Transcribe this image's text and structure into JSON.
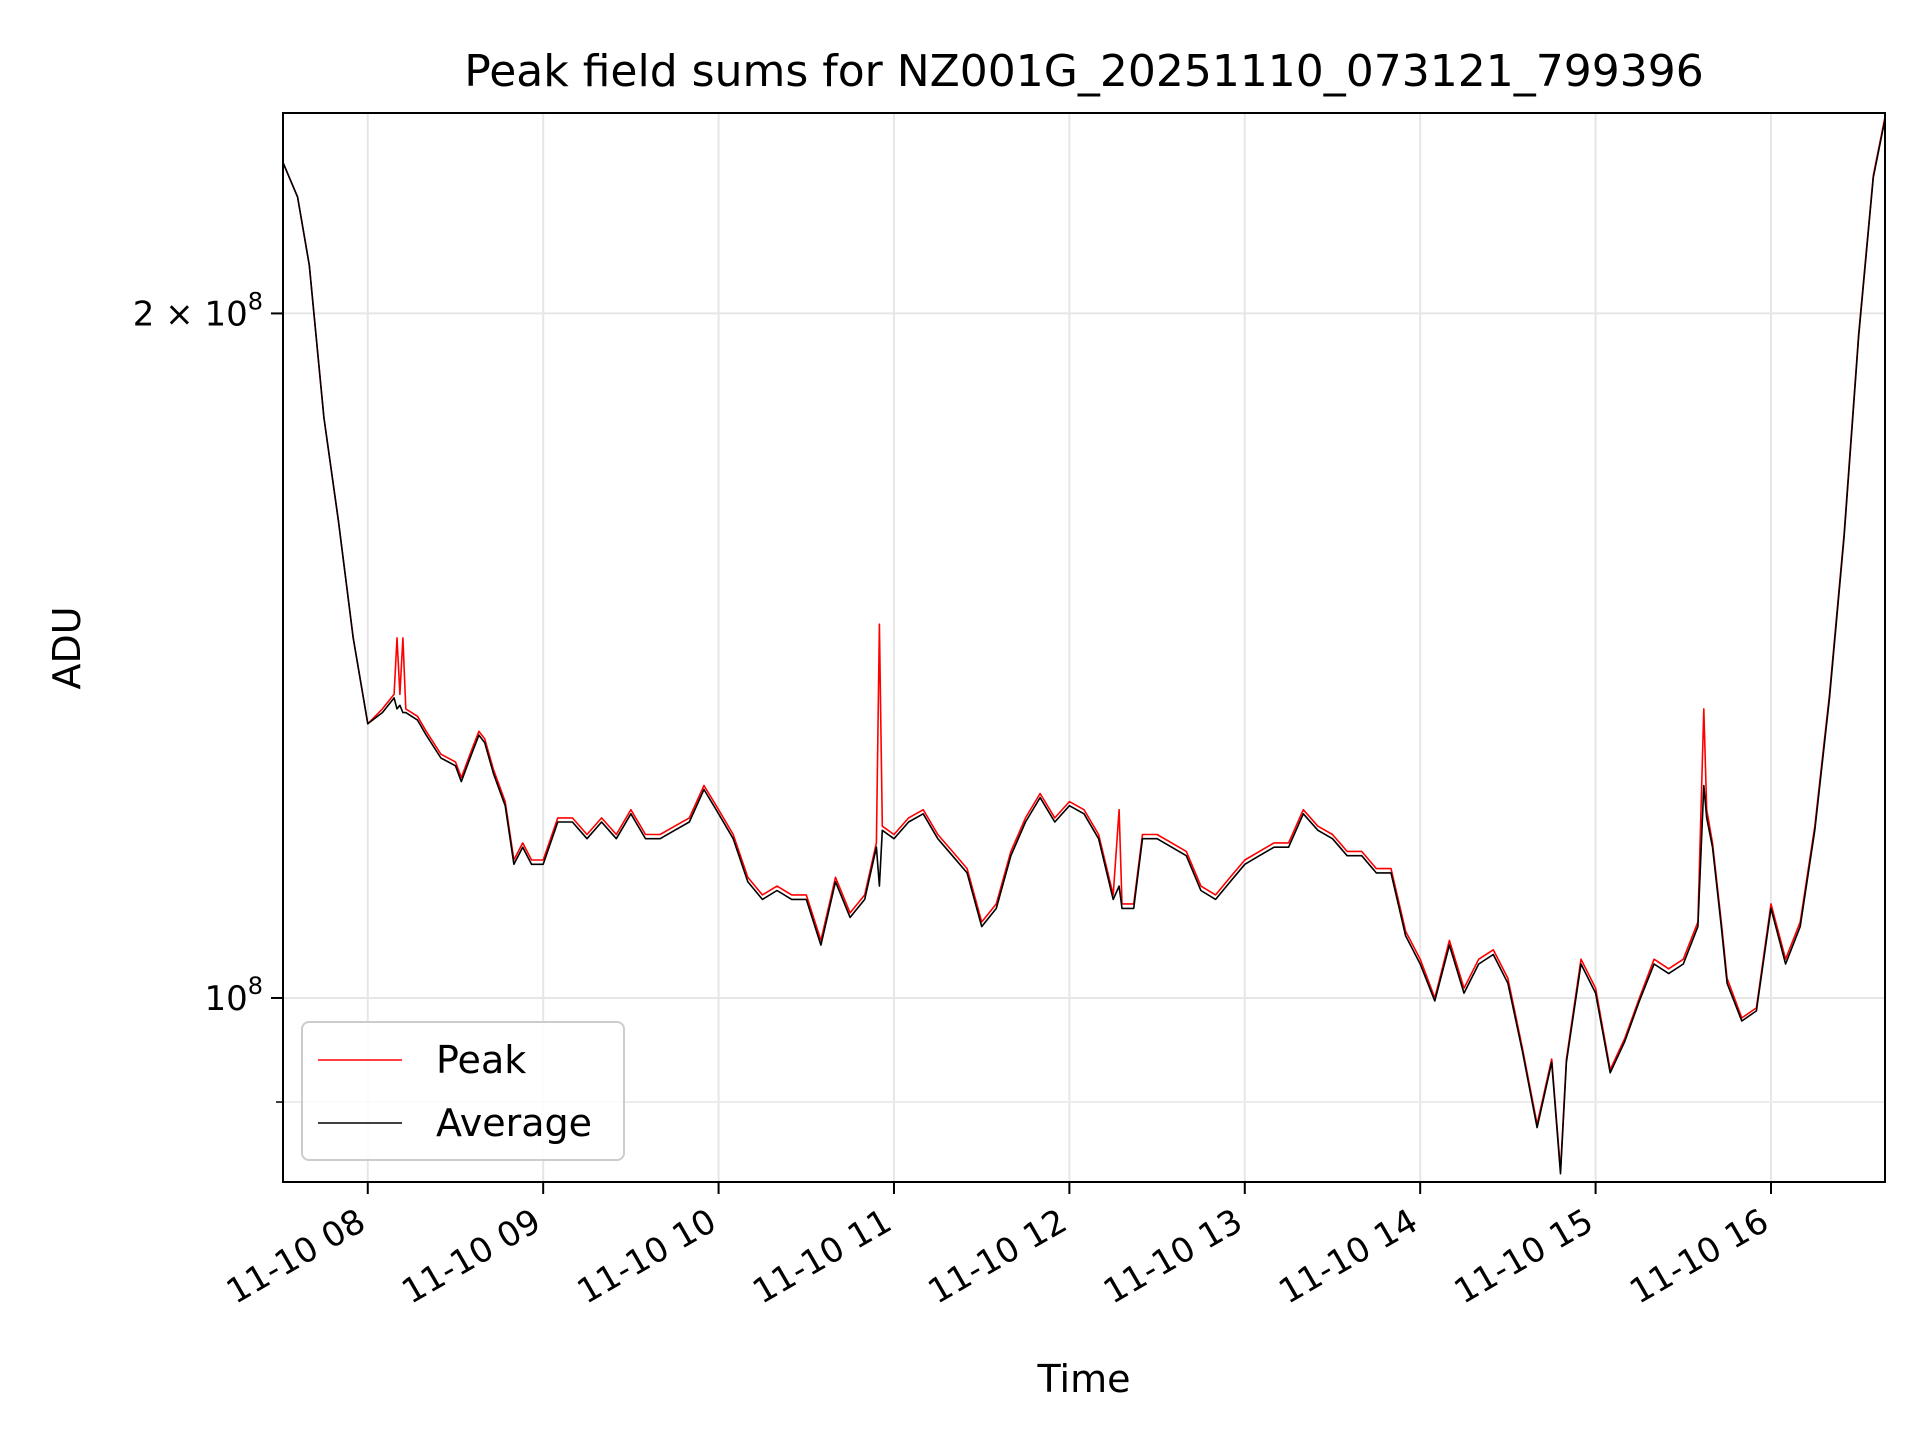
{
  "chart_data": {
    "type": "line",
    "title": "Peak field sums for NZ001G_20251110_073121_799396",
    "xlabel": "Time",
    "ylabel": "ADU",
    "y_scale": "log",
    "grid": true,
    "legend_position": "lower-left",
    "xlim": [
      "2025-11-10 07:31",
      "2025-11-10 16:39"
    ],
    "ylim": [
      83000000,
      245000000
    ],
    "x_ticks": [
      "11-10 08",
      "11-10 09",
      "11-10 10",
      "11-10 11",
      "11-10 12",
      "11-10 13",
      "11-10 14",
      "11-10 15",
      "11-10 16"
    ],
    "x_tick_times": [
      "2025-11-10 08:00",
      "2025-11-10 09:00",
      "2025-11-10 10:00",
      "2025-11-10 11:00",
      "2025-11-10 12:00",
      "2025-11-10 13:00",
      "2025-11-10 14:00",
      "2025-11-10 15:00",
      "2025-11-10 16:00"
    ],
    "y_ticks": [
      {
        "value": 200000000,
        "mantissa": "2",
        "base": "10",
        "exponent": "8"
      },
      {
        "value": 100000000,
        "mantissa": "",
        "base": "10",
        "exponent": "8"
      }
    ],
    "y_minor_ticks": [
      90000000
    ],
    "series": [
      {
        "name": "Peak",
        "color": "#ff0000",
        "points": [
          [
            "07:31",
            233000000
          ],
          [
            "07:36",
            225000000
          ],
          [
            "07:40",
            210000000
          ],
          [
            "07:45",
            180000000
          ],
          [
            "07:50",
            162000000
          ],
          [
            "07:55",
            144000000
          ],
          [
            "08:00",
            132000000
          ],
          [
            "08:05",
            134000000
          ],
          [
            "08:09",
            136000000
          ],
          [
            "08:10",
            144000000
          ],
          [
            "08:11",
            136000000
          ],
          [
            "08:12",
            144000000
          ],
          [
            "08:13",
            134000000
          ],
          [
            "08:17",
            133000000
          ],
          [
            "08:20",
            131000000
          ],
          [
            "08:25",
            128000000
          ],
          [
            "08:30",
            127000000
          ],
          [
            "08:32",
            125000000
          ],
          [
            "08:35",
            128000000
          ],
          [
            "08:38",
            131000000
          ],
          [
            "08:40",
            130000000
          ],
          [
            "08:43",
            126000000
          ],
          [
            "08:47",
            122000000
          ],
          [
            "08:50",
            115000000
          ],
          [
            "08:53",
            117000000
          ],
          [
            "08:56",
            115000000
          ],
          [
            "09:00",
            115000000
          ],
          [
            "09:05",
            120000000
          ],
          [
            "09:10",
            120000000
          ],
          [
            "09:15",
            118000000
          ],
          [
            "09:20",
            120000000
          ],
          [
            "09:25",
            118000000
          ],
          [
            "09:30",
            121000000
          ],
          [
            "09:35",
            118000000
          ],
          [
            "09:40",
            118000000
          ],
          [
            "09:45",
            119000000
          ],
          [
            "09:50",
            120000000
          ],
          [
            "09:55",
            124000000
          ],
          [
            "10:00",
            121000000
          ],
          [
            "10:05",
            118000000
          ],
          [
            "10:10",
            113000000
          ],
          [
            "10:15",
            111000000
          ],
          [
            "10:20",
            112000000
          ],
          [
            "10:25",
            111000000
          ],
          [
            "10:30",
            111000000
          ],
          [
            "10:35",
            106000000
          ],
          [
            "10:40",
            113000000
          ],
          [
            "10:45",
            109000000
          ],
          [
            "10:50",
            111000000
          ],
          [
            "10:54",
            117000000
          ],
          [
            "10:55",
            146000000
          ],
          [
            "10:56",
            119000000
          ],
          [
            "11:00",
            118000000
          ],
          [
            "11:05",
            120000000
          ],
          [
            "11:10",
            121000000
          ],
          [
            "11:15",
            118000000
          ],
          [
            "11:20",
            116000000
          ],
          [
            "11:25",
            114000000
          ],
          [
            "11:30",
            108000000
          ],
          [
            "11:35",
            110000000
          ],
          [
            "11:40",
            116000000
          ],
          [
            "11:45",
            120000000
          ],
          [
            "11:50",
            123000000
          ],
          [
            "11:55",
            120000000
          ],
          [
            "12:00",
            122000000
          ],
          [
            "12:05",
            121000000
          ],
          [
            "12:10",
            118000000
          ],
          [
            "12:15",
            111000000
          ],
          [
            "12:17",
            121000000
          ],
          [
            "12:18",
            110000000
          ],
          [
            "12:22",
            110000000
          ],
          [
            "12:25",
            118000000
          ],
          [
            "12:30",
            118000000
          ],
          [
            "12:35",
            117000000
          ],
          [
            "12:40",
            116000000
          ],
          [
            "12:45",
            112000000
          ],
          [
            "12:50",
            111000000
          ],
          [
            "12:55",
            113000000
          ],
          [
            "13:00",
            115000000
          ],
          [
            "13:05",
            116000000
          ],
          [
            "13:10",
            117000000
          ],
          [
            "13:15",
            117000000
          ],
          [
            "13:20",
            121000000
          ],
          [
            "13:25",
            119000000
          ],
          [
            "13:30",
            118000000
          ],
          [
            "13:35",
            116000000
          ],
          [
            "13:40",
            116000000
          ],
          [
            "13:45",
            114000000
          ],
          [
            "13:50",
            114000000
          ],
          [
            "13:55",
            107000000
          ],
          [
            "14:00",
            104000000
          ],
          [
            "14:05",
            100000000
          ],
          [
            "14:10",
            106000000
          ],
          [
            "14:15",
            101000000
          ],
          [
            "14:20",
            104000000
          ],
          [
            "14:25",
            105000000
          ],
          [
            "14:30",
            102000000
          ],
          [
            "14:35",
            95000000
          ],
          [
            "14:40",
            88000000
          ],
          [
            "14:45",
            94000000
          ],
          [
            "14:48",
            84000000
          ],
          [
            "14:50",
            94000000
          ],
          [
            "14:55",
            104000000
          ],
          [
            "15:00",
            101000000
          ],
          [
            "15:05",
            93000000
          ],
          [
            "15:10",
            96000000
          ],
          [
            "15:15",
            100000000
          ],
          [
            "15:20",
            104000000
          ],
          [
            "15:25",
            103000000
          ],
          [
            "15:30",
            104000000
          ],
          [
            "15:35",
            108000000
          ],
          [
            "15:37",
            134000000
          ],
          [
            "15:38",
            121000000
          ],
          [
            "15:40",
            117000000
          ],
          [
            "15:43",
            108000000
          ],
          [
            "15:45",
            102000000
          ],
          [
            "15:50",
            98000000
          ],
          [
            "15:55",
            99000000
          ],
          [
            "16:00",
            110000000
          ],
          [
            "16:05",
            104000000
          ],
          [
            "16:10",
            108000000
          ],
          [
            "16:15",
            119000000
          ],
          [
            "16:20",
            136000000
          ],
          [
            "16:25",
            160000000
          ],
          [
            "16:30",
            196000000
          ],
          [
            "16:35",
            230000000
          ],
          [
            "16:39",
            244000000
          ]
        ]
      },
      {
        "name": "Average",
        "color": "#000000",
        "points": [
          [
            "07:31",
            233000000
          ],
          [
            "07:36",
            225000000
          ],
          [
            "07:40",
            210000000
          ],
          [
            "07:45",
            180000000
          ],
          [
            "07:50",
            162000000
          ],
          [
            "07:55",
            144000000
          ],
          [
            "08:00",
            132000000
          ],
          [
            "08:05",
            133500000
          ],
          [
            "08:09",
            135500000
          ],
          [
            "08:10",
            134000000
          ],
          [
            "08:11",
            134500000
          ],
          [
            "08:12",
            133500000
          ],
          [
            "08:13",
            133500000
          ],
          [
            "08:17",
            132500000
          ],
          [
            "08:20",
            130500000
          ],
          [
            "08:25",
            127500000
          ],
          [
            "08:30",
            126500000
          ],
          [
            "08:32",
            124500000
          ],
          [
            "08:35",
            127500000
          ],
          [
            "08:38",
            130500000
          ],
          [
            "08:40",
            129500000
          ],
          [
            "08:43",
            125500000
          ],
          [
            "08:47",
            121500000
          ],
          [
            "08:50",
            114500000
          ],
          [
            "08:53",
            116500000
          ],
          [
            "08:56",
            114500000
          ],
          [
            "09:00",
            114500000
          ],
          [
            "09:05",
            119500000
          ],
          [
            "09:10",
            119500000
          ],
          [
            "09:15",
            117500000
          ],
          [
            "09:20",
            119500000
          ],
          [
            "09:25",
            117500000
          ],
          [
            "09:30",
            120500000
          ],
          [
            "09:35",
            117500000
          ],
          [
            "09:40",
            117500000
          ],
          [
            "09:45",
            118500000
          ],
          [
            "09:50",
            119500000
          ],
          [
            "09:55",
            123500000
          ],
          [
            "10:00",
            120500000
          ],
          [
            "10:05",
            117500000
          ],
          [
            "10:10",
            112500000
          ],
          [
            "10:15",
            110500000
          ],
          [
            "10:20",
            111500000
          ],
          [
            "10:25",
            110500000
          ],
          [
            "10:30",
            110500000
          ],
          [
            "10:35",
            105500000
          ],
          [
            "10:40",
            112500000
          ],
          [
            "10:45",
            108500000
          ],
          [
            "10:50",
            110500000
          ],
          [
            "10:54",
            116500000
          ],
          [
            "10:55",
            112000000
          ],
          [
            "10:56",
            118500000
          ],
          [
            "11:00",
            117500000
          ],
          [
            "11:05",
            119500000
          ],
          [
            "11:10",
            120500000
          ],
          [
            "11:15",
            117500000
          ],
          [
            "11:20",
            115500000
          ],
          [
            "11:25",
            113500000
          ],
          [
            "11:30",
            107500000
          ],
          [
            "11:35",
            109500000
          ],
          [
            "11:40",
            115500000
          ],
          [
            "11:45",
            119500000
          ],
          [
            "11:50",
            122500000
          ],
          [
            "11:55",
            119500000
          ],
          [
            "12:00",
            121500000
          ],
          [
            "12:05",
            120500000
          ],
          [
            "12:10",
            117500000
          ],
          [
            "12:15",
            110500000
          ],
          [
            "12:17",
            112000000
          ],
          [
            "12:18",
            109500000
          ],
          [
            "12:22",
            109500000
          ],
          [
            "12:25",
            117500000
          ],
          [
            "12:30",
            117500000
          ],
          [
            "12:35",
            116500000
          ],
          [
            "12:40",
            115500000
          ],
          [
            "12:45",
            111500000
          ],
          [
            "12:50",
            110500000
          ],
          [
            "12:55",
            112500000
          ],
          [
            "13:00",
            114500000
          ],
          [
            "13:05",
            115500000
          ],
          [
            "13:10",
            116500000
          ],
          [
            "13:15",
            116500000
          ],
          [
            "13:20",
            120500000
          ],
          [
            "13:25",
            118500000
          ],
          [
            "13:30",
            117500000
          ],
          [
            "13:35",
            115500000
          ],
          [
            "13:40",
            115500000
          ],
          [
            "13:45",
            113500000
          ],
          [
            "13:50",
            113500000
          ],
          [
            "13:55",
            106500000
          ],
          [
            "14:00",
            103500000
          ],
          [
            "14:05",
            99700000
          ],
          [
            "14:10",
            105500000
          ],
          [
            "14:15",
            100500000
          ],
          [
            "14:20",
            103500000
          ],
          [
            "14:25",
            104500000
          ],
          [
            "14:30",
            101500000
          ],
          [
            "14:35",
            94700000
          ],
          [
            "14:40",
            87700000
          ],
          [
            "14:45",
            93700000
          ],
          [
            "14:48",
            83700000
          ],
          [
            "14:50",
            93700000
          ],
          [
            "14:55",
            103500000
          ],
          [
            "15:00",
            100500000
          ],
          [
            "15:05",
            92700000
          ],
          [
            "15:10",
            95700000
          ],
          [
            "15:15",
            99700000
          ],
          [
            "15:20",
            103500000
          ],
          [
            "15:25",
            102500000
          ],
          [
            "15:30",
            103500000
          ],
          [
            "15:35",
            107500000
          ],
          [
            "15:37",
            124000000
          ],
          [
            "15:38",
            120000000
          ],
          [
            "15:40",
            116500000
          ],
          [
            "15:43",
            107500000
          ],
          [
            "15:45",
            101500000
          ],
          [
            "15:50",
            97700000
          ],
          [
            "15:55",
            98700000
          ],
          [
            "16:00",
            109500000
          ],
          [
            "16:05",
            103500000
          ],
          [
            "16:10",
            107500000
          ],
          [
            "16:15",
            118500000
          ],
          [
            "16:20",
            135500000
          ],
          [
            "16:25",
            159500000
          ],
          [
            "16:30",
            195500000
          ],
          [
            "16:35",
            229500000
          ],
          [
            "16:39",
            243500000
          ]
        ]
      }
    ]
  }
}
